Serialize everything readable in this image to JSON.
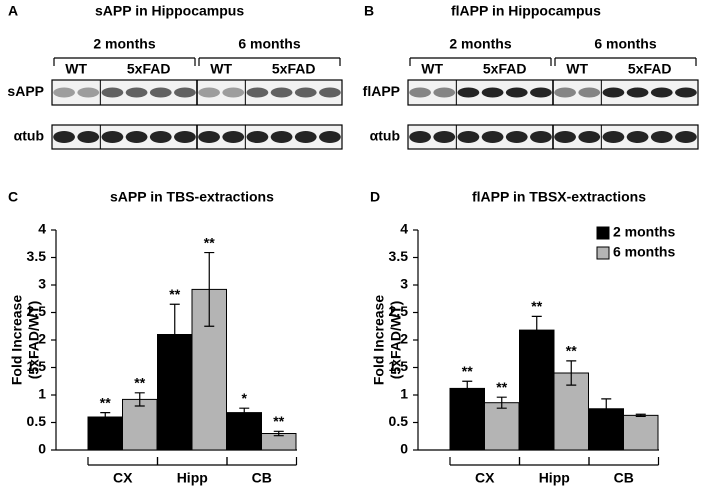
{
  "blots": [
    {
      "letter": "A",
      "title": "sAPP in Hippocampus",
      "groups": [
        "2 months",
        "6 months"
      ],
      "lanes": [
        "WT",
        "5xFAD",
        "WT",
        "5xFAD"
      ],
      "rows": [
        "sAPP",
        "αtub"
      ]
    },
    {
      "letter": "B",
      "title": "flAPP in Hippocampus",
      "groups": [
        "2 months",
        "6 months"
      ],
      "lanes": [
        "WT",
        "5xFAD",
        "WT",
        "5xFAD"
      ],
      "rows": [
        "flAPP",
        "αtub"
      ]
    }
  ],
  "chart_data": [
    {
      "type": "bar",
      "panel": "C",
      "title": "sAPP in TBS-extractions",
      "ylabel": [
        "Fold Increase",
        "(5xFAD/WT)"
      ],
      "categories": [
        "CX",
        "Hipp",
        "CB"
      ],
      "series": [
        {
          "name": "2 months",
          "color": "#000000",
          "values": [
            0.6,
            2.1,
            0.68
          ],
          "errors": [
            0.08,
            0.55,
            0.08
          ],
          "marks": [
            "**",
            "**",
            "*"
          ]
        },
        {
          "name": "6 months",
          "color": "#b4b4b4",
          "values": [
            0.92,
            2.92,
            0.3
          ],
          "errors": [
            0.12,
            0.67,
            0.04
          ],
          "marks": [
            "**",
            "**",
            "**"
          ]
        }
      ],
      "ylim": [
        0,
        4
      ],
      "yticks": [
        0,
        0.5,
        1,
        1.5,
        2,
        2.5,
        3,
        3.5,
        4
      ],
      "legend": false
    },
    {
      "type": "bar",
      "panel": "D",
      "title": "flAPP in TBSX-extractions",
      "ylabel": [
        "Fold Increase",
        "(5xFAD/WT)"
      ],
      "categories": [
        "CX",
        "Hipp",
        "CB"
      ],
      "series": [
        {
          "name": "2 months",
          "color": "#000000",
          "values": [
            1.12,
            2.18,
            0.75
          ],
          "errors": [
            0.13,
            0.25,
            0.18
          ],
          "marks": [
            "**",
            "**",
            null
          ]
        },
        {
          "name": "6 months",
          "color": "#b4b4b4",
          "values": [
            0.86,
            1.4,
            0.63
          ],
          "errors": [
            0.1,
            0.22,
            0.02
          ],
          "marks": [
            "**",
            "**",
            null
          ]
        }
      ],
      "ylim": [
        0,
        4
      ],
      "yticks": [
        0,
        0.5,
        1,
        1.5,
        2,
        2.5,
        3,
        3.5,
        4
      ],
      "legend": "upper right"
    }
  ]
}
